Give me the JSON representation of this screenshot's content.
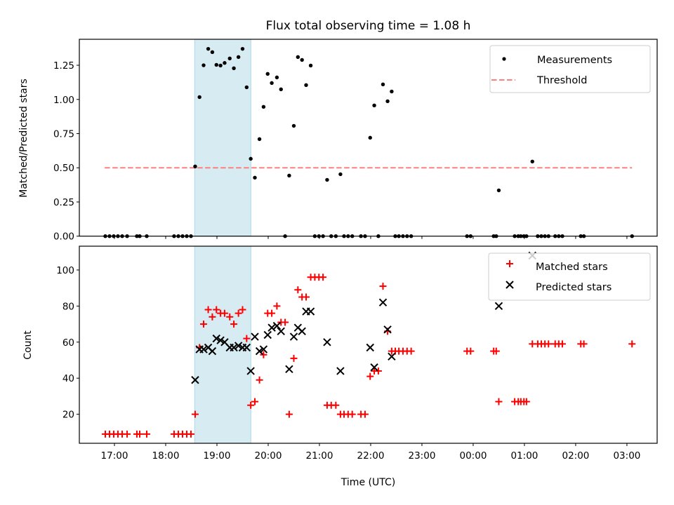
{
  "chart_data": [
    {
      "type": "scatter",
      "panel": "top",
      "title": "Flux total observing time = 1.08 h",
      "xlabel": "",
      "ylabel": "Matched/Predicted stars",
      "xlim": [
        16.315,
        27.59
      ],
      "ylim": [
        0,
        1.44
      ],
      "yticks": [
        0.0,
        0.25,
        0.5,
        0.75,
        1.0,
        1.25
      ],
      "ytick_labels": [
        "0.00",
        "0.25",
        "0.50",
        "0.75",
        "1.00",
        "1.25"
      ],
      "grid": false,
      "legend": {
        "placement": "top-right",
        "entries": [
          "Measurements",
          "Threshold"
        ]
      },
      "threshold": {
        "name": "Threshold",
        "value": 0.5,
        "x_start": 16.81,
        "x_end": 27.1,
        "color": "#ff7f7f",
        "style": "dashed"
      },
      "shaded_region": {
        "x_start": 18.566,
        "x_end": 19.662,
        "color": "#add8e6"
      },
      "series": [
        {
          "name": "Measurements",
          "color": "#000000",
          "marker": "dot",
          "x_ref": "observations.time",
          "y_ref": "observations.ratio"
        }
      ]
    },
    {
      "type": "scatter",
      "panel": "bottom",
      "title": "",
      "xlabel": "Time (UTC)",
      "ylabel": "Count",
      "xlim": [
        16.315,
        27.59
      ],
      "ylim": [
        3.9,
        113.2
      ],
      "yticks": [
        20,
        40,
        60,
        80,
        100
      ],
      "ytick_labels": [
        "20",
        "40",
        "60",
        "80",
        "100"
      ],
      "xticks": [
        17,
        18,
        19,
        20,
        21,
        22,
        23,
        24,
        25,
        26,
        27
      ],
      "xtick_labels": [
        "17:00",
        "18:00",
        "19:00",
        "20:00",
        "21:00",
        "22:00",
        "23:00",
        "00:00",
        "01:00",
        "02:00",
        "03:00"
      ],
      "grid": false,
      "legend": {
        "placement": "top-right",
        "entries": [
          "Matched stars",
          "Predicted stars"
        ]
      },
      "shaded_region": {
        "x_start": 18.566,
        "x_end": 19.662,
        "color": "#add8e6"
      },
      "series": [
        {
          "name": "Matched stars",
          "color": "#ff0000",
          "marker": "plus",
          "x_ref": "observations.time",
          "y_ref": "observations.matched"
        },
        {
          "name": "Predicted stars",
          "color": "#000000",
          "marker": "x",
          "x_ref": "observations.time",
          "y_ref": "observations.predicted"
        }
      ]
    }
  ],
  "observations": [
    {
      "time": 16.822,
      "matched": 9,
      "predicted": null,
      "ratio": 0
    },
    {
      "time": 16.904,
      "matched": 9,
      "predicted": null,
      "ratio": 0
    },
    {
      "time": 16.986,
      "matched": 9,
      "predicted": null,
      "ratio": 0
    },
    {
      "time": 17.068,
      "matched": 9,
      "predicted": null,
      "ratio": 0
    },
    {
      "time": 17.151,
      "matched": 9,
      "predicted": null,
      "ratio": 0
    },
    {
      "time": 17.247,
      "matched": 9,
      "predicted": null,
      "ratio": 0
    },
    {
      "time": 17.438,
      "matched": 9,
      "predicted": null,
      "ratio": 0
    },
    {
      "time": 17.493,
      "matched": 9,
      "predicted": null,
      "ratio": 0
    },
    {
      "time": 17.63,
      "matched": 9,
      "predicted": null,
      "ratio": 0
    },
    {
      "time": 18.164,
      "matched": 9,
      "predicted": null,
      "ratio": 0
    },
    {
      "time": 18.247,
      "matched": 9,
      "predicted": null,
      "ratio": 0
    },
    {
      "time": 18.329,
      "matched": 9,
      "predicted": null,
      "ratio": 0
    },
    {
      "time": 18.411,
      "matched": 9,
      "predicted": null,
      "ratio": 0
    },
    {
      "time": 18.493,
      "matched": 9,
      "predicted": null,
      "ratio": 0
    },
    {
      "time": 18.575,
      "matched": 20,
      "predicted": 39,
      "ratio": 0.51
    },
    {
      "time": 18.66,
      "matched": 57,
      "predicted": 56,
      "ratio": 1.017
    },
    {
      "time": 18.74,
      "matched": 70,
      "predicted": 56,
      "ratio": 1.25
    },
    {
      "time": 18.83,
      "matched": 78,
      "predicted": 57,
      "ratio": 1.37
    },
    {
      "time": 18.91,
      "matched": 74,
      "predicted": 55,
      "ratio": 1.346
    },
    {
      "time": 18.99,
      "matched": 78,
      "predicted": 62,
      "ratio": 1.253
    },
    {
      "time": 19.07,
      "matched": 76,
      "predicted": 61,
      "ratio": 1.248
    },
    {
      "time": 19.15,
      "matched": 76,
      "predicted": 60,
      "ratio": 1.267
    },
    {
      "time": 19.25,
      "matched": 74,
      "predicted": 57,
      "ratio": 1.3
    },
    {
      "time": 19.33,
      "matched": 70,
      "predicted": 57,
      "ratio": 1.228
    },
    {
      "time": 19.42,
      "matched": 76,
      "predicted": 58,
      "ratio": 1.31
    },
    {
      "time": 19.5,
      "matched": 78,
      "predicted": 57,
      "ratio": 1.37
    },
    {
      "time": 19.58,
      "matched": 62,
      "predicted": 57,
      "ratio": 1.089
    },
    {
      "time": 19.66,
      "matched": 25,
      "predicted": 44,
      "ratio": 0.566
    },
    {
      "time": 19.74,
      "matched": 27,
      "predicted": 63,
      "ratio": 0.428
    },
    {
      "time": 19.83,
      "matched": 39,
      "predicted": 55,
      "ratio": 0.71
    },
    {
      "time": 19.91,
      "matched": 53,
      "predicted": 56,
      "ratio": 0.946
    },
    {
      "time": 19.99,
      "matched": 76,
      "predicted": 64,
      "ratio": 1.187
    },
    {
      "time": 20.07,
      "matched": 76,
      "predicted": 68,
      "ratio": 1.12
    },
    {
      "time": 20.17,
      "matched": 80,
      "predicted": 69,
      "ratio": 1.161
    },
    {
      "time": 20.25,
      "matched": 71,
      "predicted": 66,
      "ratio": 1.074
    },
    {
      "time": 20.33,
      "matched": 71,
      "predicted": null,
      "ratio": 0
    },
    {
      "time": 20.41,
      "matched": 20,
      "predicted": 45,
      "ratio": 0.443
    },
    {
      "time": 20.5,
      "matched": 51,
      "predicted": 63,
      "ratio": 0.807
    },
    {
      "time": 20.58,
      "matched": 89,
      "predicted": 68,
      "ratio": 1.31
    },
    {
      "time": 20.66,
      "matched": 85,
      "predicted": 66,
      "ratio": 1.289
    },
    {
      "time": 20.74,
      "matched": 85,
      "predicted": 77,
      "ratio": 1.105
    },
    {
      "time": 20.83,
      "matched": 96,
      "predicted": 77,
      "ratio": 1.248
    },
    {
      "time": 20.91,
      "matched": 96,
      "predicted": null,
      "ratio": 0
    },
    {
      "time": 20.99,
      "matched": 96,
      "predicted": null,
      "ratio": 0
    },
    {
      "time": 21.07,
      "matched": 96,
      "predicted": null,
      "ratio": 0
    },
    {
      "time": 21.15,
      "matched": 25,
      "predicted": 60,
      "ratio": 0.412
    },
    {
      "time": 21.23,
      "matched": 25,
      "predicted": null,
      "ratio": 0
    },
    {
      "time": 21.32,
      "matched": 25,
      "predicted": null,
      "ratio": 0
    },
    {
      "time": 21.41,
      "matched": 20,
      "predicted": 44,
      "ratio": 0.453
    },
    {
      "time": 21.48,
      "matched": 20,
      "predicted": null,
      "ratio": 0
    },
    {
      "time": 21.56,
      "matched": 20,
      "predicted": null,
      "ratio": 0
    },
    {
      "time": 21.64,
      "matched": 20,
      "predicted": null,
      "ratio": 0
    },
    {
      "time": 21.81,
      "matched": 20,
      "predicted": null,
      "ratio": 0
    },
    {
      "time": 21.89,
      "matched": 20,
      "predicted": null,
      "ratio": 0
    },
    {
      "time": 21.99,
      "matched": 41,
      "predicted": 57,
      "ratio": 0.72
    },
    {
      "time": 22.07,
      "matched": 44,
      "predicted": 46,
      "ratio": 0.956
    },
    {
      "time": 22.15,
      "matched": 44,
      "predicted": null,
      "ratio": 0
    },
    {
      "time": 22.24,
      "matched": 91,
      "predicted": 82,
      "ratio": 1.11
    },
    {
      "time": 22.33,
      "matched": 66,
      "predicted": 67,
      "ratio": 0.987
    },
    {
      "time": 22.41,
      "matched": 55,
      "predicted": 52,
      "ratio": 1.058
    },
    {
      "time": 22.48,
      "matched": 55,
      "predicted": null,
      "ratio": 0
    },
    {
      "time": 22.55,
      "matched": 55,
      "predicted": null,
      "ratio": 0
    },
    {
      "time": 22.63,
      "matched": 55,
      "predicted": null,
      "ratio": 0
    },
    {
      "time": 22.71,
      "matched": 55,
      "predicted": null,
      "ratio": 0
    },
    {
      "time": 22.79,
      "matched": 55,
      "predicted": null,
      "ratio": 0
    },
    {
      "time": 23.88,
      "matched": 55,
      "predicted": null,
      "ratio": 0
    },
    {
      "time": 23.95,
      "matched": 55,
      "predicted": null,
      "ratio": 0
    },
    {
      "time": 24.4,
      "matched": 55,
      "predicted": null,
      "ratio": 0
    },
    {
      "time": 24.45,
      "matched": 55,
      "predicted": null,
      "ratio": 0
    },
    {
      "time": 24.5,
      "matched": 27,
      "predicted": 80,
      "ratio": 0.335
    },
    {
      "time": 24.81,
      "matched": 27,
      "predicted": null,
      "ratio": 0
    },
    {
      "time": 24.88,
      "matched": 27,
      "predicted": null,
      "ratio": 0
    },
    {
      "time": 24.93,
      "matched": 27,
      "predicted": null,
      "ratio": 0
    },
    {
      "time": 24.99,
      "matched": 27,
      "predicted": null,
      "ratio": 0
    },
    {
      "time": 25.04,
      "matched": 27,
      "predicted": null,
      "ratio": 0
    },
    {
      "time": 25.155,
      "matched": 59,
      "predicted": 108,
      "ratio": 0.546
    },
    {
      "time": 25.26,
      "matched": 59,
      "predicted": null,
      "ratio": 0
    },
    {
      "time": 25.33,
      "matched": 59,
      "predicted": null,
      "ratio": 0
    },
    {
      "time": 25.4,
      "matched": 59,
      "predicted": null,
      "ratio": 0
    },
    {
      "time": 25.47,
      "matched": 59,
      "predicted": null,
      "ratio": 0
    },
    {
      "time": 25.6,
      "matched": 59,
      "predicted": null,
      "ratio": 0
    },
    {
      "time": 25.67,
      "matched": 59,
      "predicted": null,
      "ratio": 0
    },
    {
      "time": 25.74,
      "matched": 59,
      "predicted": null,
      "ratio": 0
    },
    {
      "time": 26.1,
      "matched": 59,
      "predicted": null,
      "ratio": 0
    },
    {
      "time": 26.16,
      "matched": 59,
      "predicted": null,
      "ratio": 0
    },
    {
      "time": 27.1,
      "matched": 59,
      "predicted": null,
      "ratio": 0
    }
  ],
  "labels": {
    "title": "Flux total observing time = 1.08 h",
    "top_ylabel": "Matched/Predicted stars",
    "bottom_ylabel": "Count",
    "xlabel": "Time (UTC)",
    "legend_top": [
      "Measurements",
      "Threshold"
    ],
    "legend_bottom": [
      "Matched stars",
      "Predicted stars"
    ]
  }
}
